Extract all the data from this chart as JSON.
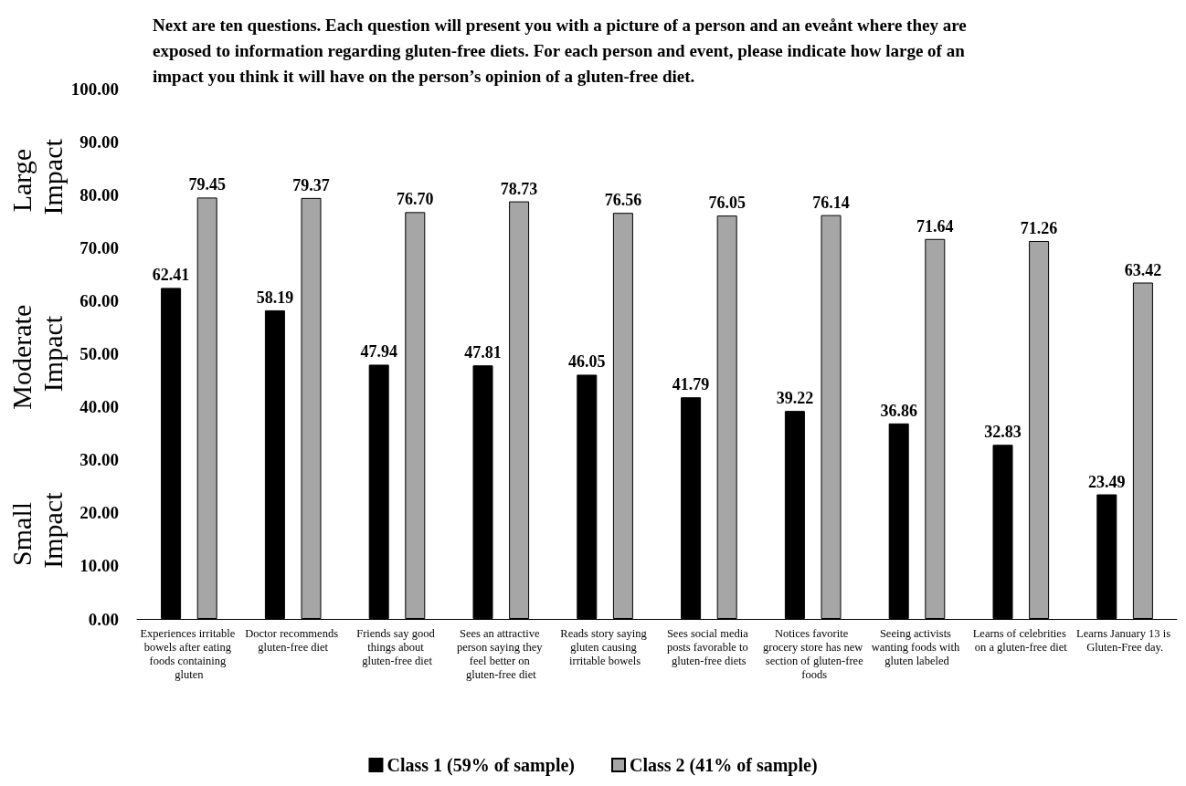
{
  "chart_data": {
    "type": "bar",
    "title": "Next are ten questions. Each question will present you with a picture of a person and an eveånt where they are exposed to information regarding gluten-free diets. For each person and event, please indicate how large of an impact you think it will have on the person’s opinion of a gluten-free diet.",
    "categories": [
      "Experiences irritable bowels after eating foods containing gluten",
      "Doctor recommends gluten-free diet",
      "Friends say good things about gluten-free diet",
      "Sees an attractive person saying they feel better on gluten-free diet",
      "Reads story saying gluten causing irritable bowels",
      "Sees social media posts favorable to gluten-free diets",
      "Notices favorite grocery store has new section of gluten-free foods",
      "Seeing activists wanting foods with gluten labeled",
      "Learns of celebrities on a gluten-free diet",
      "Learns January 13 is Gluten-Free day."
    ],
    "series": [
      {
        "name": "Class 1 (59% of sample)",
        "color": "#000000",
        "values": [
          62.41,
          58.19,
          47.94,
          47.81,
          46.05,
          41.79,
          39.22,
          36.86,
          32.83,
          23.49
        ],
        "value_labels": [
          "62.41",
          "58.19",
          "47.94",
          "47.81",
          "46.05",
          "41.79",
          "39.22",
          "36.86",
          "32.83",
          "23.49"
        ]
      },
      {
        "name": "Class 2 (41% of sample)",
        "color": "#a6a6a6",
        "values": [
          79.45,
          79.37,
          76.7,
          78.73,
          76.56,
          76.05,
          76.14,
          71.64,
          71.26,
          63.42
        ],
        "value_labels": [
          "79.45",
          "79.37",
          "76.70",
          "78.73",
          "76.56",
          "76.05",
          "76.14",
          "71.64",
          "71.26",
          "63.42"
        ]
      }
    ],
    "ylim": [
      0,
      100
    ],
    "yticks": [
      {
        "value": 0,
        "label": "0.00"
      },
      {
        "value": 10,
        "label": "10.00"
      },
      {
        "value": 20,
        "label": "20.00"
      },
      {
        "value": 30,
        "label": "30.00"
      },
      {
        "value": 40,
        "label": "40.00"
      },
      {
        "value": 50,
        "label": "50.00"
      },
      {
        "value": 60,
        "label": "60.00"
      },
      {
        "value": 70,
        "label": "70.00"
      },
      {
        "value": 80,
        "label": "80.00"
      },
      {
        "value": 90,
        "label": "90.00"
      },
      {
        "value": 100,
        "label": "100.00"
      }
    ],
    "annotations": [
      "Small Impact",
      "Moderate Impact",
      "Large Impact"
    ],
    "grid": false,
    "legend": "bottom"
  }
}
